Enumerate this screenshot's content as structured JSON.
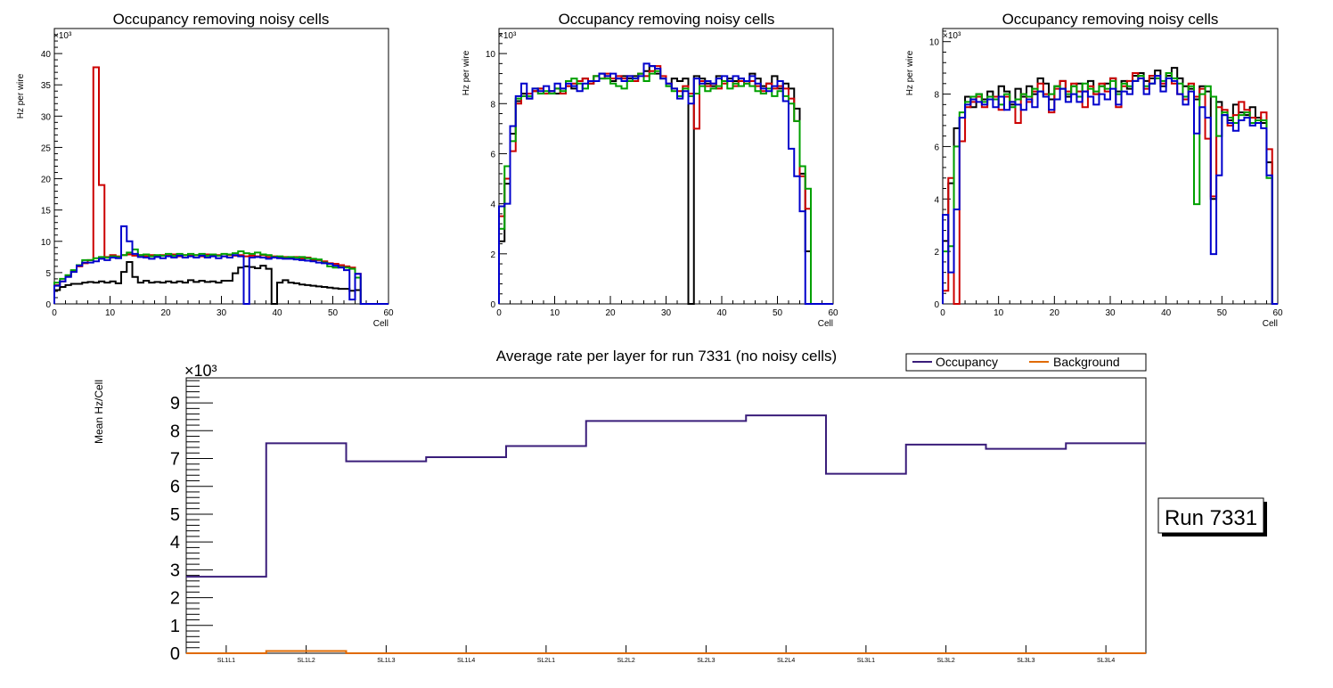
{
  "chart_data": [
    {
      "type": "step",
      "title": "Occupancy removing noisy cells",
      "xlabel": "Cell",
      "ylabel": "Hz per wire",
      "multiplier": "×10³",
      "xlim": [
        0,
        60
      ],
      "ylim": [
        0,
        44
      ],
      "xticks": [
        0,
        10,
        20,
        30,
        40,
        50,
        60
      ],
      "yticks": [
        0,
        5,
        10,
        15,
        20,
        25,
        30,
        35,
        40
      ],
      "series": [
        {
          "name": "black",
          "color": "#000000",
          "values": [
            2.2,
            2.7,
            3.0,
            3.2,
            3.2,
            3.4,
            3.5,
            3.4,
            3.6,
            3.4,
            3.6,
            3.3,
            5.1,
            6.7,
            4.3,
            3.4,
            3.7,
            3.4,
            3.5,
            3.4,
            3.6,
            3.4,
            3.6,
            3.4,
            3.8,
            3.5,
            3.7,
            3.5,
            3.6,
            3.4,
            3.7,
            3.7,
            4.9,
            5.8,
            6.0,
            5.9,
            5.7,
            6.1,
            5.6,
            0,
            3.4,
            3.8,
            3.4,
            3.3,
            3.1,
            3.0,
            2.9,
            2.8,
            2.7,
            2.6,
            2.5,
            2.4,
            2.4,
            2.1,
            2.2,
            0,
            0,
            0,
            0,
            0
          ]
        },
        {
          "name": "red",
          "color": "#cc0000",
          "values": [
            3.0,
            3.6,
            4.4,
            5.3,
            6.0,
            6.5,
            7.0,
            37.8,
            19.0,
            7.5,
            7.8,
            7.6,
            7.8,
            7.9,
            7.7,
            7.8,
            7.6,
            7.8,
            7.6,
            7.8,
            7.7,
            7.9,
            7.6,
            7.8,
            7.7,
            7.8,
            7.6,
            7.9,
            7.7,
            7.8,
            7.6,
            7.8,
            7.7,
            7.8,
            7.6,
            7.7,
            7.6,
            7.8,
            7.5,
            7.6,
            7.4,
            7.5,
            7.3,
            7.5,
            7.2,
            7.4,
            7.0,
            7.0,
            6.8,
            6.5,
            6.4,
            6.2,
            6.0,
            5.8,
            4.8,
            0,
            0,
            0,
            0,
            0
          ]
        },
        {
          "name": "green",
          "color": "#00a000",
          "values": [
            3.4,
            4.0,
            4.6,
            5.4,
            6.2,
            7.0,
            7.0,
            7.3,
            7.5,
            7.4,
            7.6,
            7.5,
            7.8,
            8.2,
            8.7,
            7.8,
            7.9,
            7.6,
            7.8,
            7.7,
            8.0,
            7.7,
            8.0,
            7.8,
            8.0,
            7.8,
            8.0,
            7.7,
            7.9,
            7.7,
            8.0,
            7.9,
            8.1,
            8.4,
            8.1,
            8.0,
            8.2,
            7.9,
            7.8,
            7.5,
            7.6,
            7.4,
            7.5,
            7.4,
            7.5,
            7.3,
            7.2,
            7.1,
            6.6,
            6.0,
            5.8,
            5.9,
            5.8,
            5.6,
            4.2,
            0,
            0,
            0,
            0,
            0
          ]
        },
        {
          "name": "blue",
          "color": "#0000cc",
          "values": [
            2.9,
            3.6,
            4.3,
            5.1,
            6.1,
            6.6,
            6.6,
            6.8,
            7.2,
            7.0,
            7.4,
            7.3,
            12.4,
            10.0,
            8.0,
            7.5,
            7.4,
            7.2,
            7.5,
            7.3,
            7.6,
            7.4,
            7.7,
            7.4,
            7.6,
            7.4,
            7.7,
            7.4,
            7.6,
            7.3,
            7.6,
            7.4,
            7.8,
            7.6,
            0,
            7.4,
            7.5,
            7.4,
            7.2,
            7.4,
            7.3,
            7.2,
            7.2,
            7.1,
            7.0,
            6.9,
            6.8,
            6.6,
            6.5,
            6.4,
            6.1,
            5.8,
            5.4,
            0.7,
            4.8,
            0,
            0,
            0,
            0,
            0
          ]
        }
      ]
    },
    {
      "type": "step",
      "title": "Occupancy removing noisy cells",
      "xlabel": "Cell",
      "ylabel": "Hz per wire",
      "multiplier": "×10³",
      "xlim": [
        0,
        60
      ],
      "ylim": [
        0,
        11
      ],
      "xticks": [
        0,
        10,
        20,
        30,
        40,
        50,
        60
      ],
      "yticks": [
        0,
        2,
        4,
        6,
        8,
        10
      ],
      "series": [
        {
          "name": "black",
          "color": "#000000",
          "values": [
            2.5,
            4.8,
            6.8,
            8.1,
            8.4,
            8.2,
            8.5,
            8.6,
            8.4,
            8.5,
            8.4,
            8.6,
            8.7,
            8.6,
            8.9,
            9.0,
            8.8,
            9.1,
            9.2,
            9.1,
            8.9,
            9.0,
            9.1,
            9.0,
            9.1,
            9.2,
            9.3,
            9.5,
            9.2,
            9.0,
            8.7,
            9.0,
            8.9,
            9.0,
            0,
            9.1,
            9.0,
            8.8,
            8.7,
            9.1,
            8.9,
            9.0,
            8.9,
            9.0,
            8.9,
            9.2,
            9.0,
            8.7,
            8.8,
            9.1,
            8.6,
            8.8,
            8.6,
            7.8,
            5.2,
            2.1,
            0,
            0,
            0,
            0
          ]
        },
        {
          "name": "red",
          "color": "#cc0000",
          "values": [
            3.5,
            5.0,
            6.1,
            8.0,
            8.3,
            8.4,
            8.5,
            8.6,
            8.4,
            8.5,
            8.6,
            8.4,
            8.7,
            8.8,
            8.9,
            9.0,
            8.8,
            9.1,
            9.0,
            9.2,
            9.0,
            9.1,
            9.0,
            9.1,
            8.9,
            9.2,
            9.1,
            9.3,
            9.5,
            9.1,
            8.8,
            8.6,
            8.5,
            8.7,
            8.4,
            7.0,
            8.9,
            8.7,
            8.8,
            8.6,
            8.8,
            8.9,
            8.7,
            8.9,
            8.8,
            8.9,
            8.7,
            8.5,
            8.8,
            8.6,
            8.7,
            8.6,
            8.2,
            7.3,
            5.1,
            3.8,
            0,
            0,
            0,
            0
          ]
        },
        {
          "name": "green",
          "color": "#00a000",
          "values": [
            3.0,
            5.5,
            6.5,
            8.2,
            8.3,
            8.3,
            8.6,
            8.4,
            8.5,
            8.4,
            8.6,
            8.5,
            8.9,
            9.0,
            8.8,
            8.6,
            8.9,
            9.1,
            9.0,
            9.0,
            8.8,
            8.7,
            8.6,
            8.9,
            9.0,
            9.2,
            8.9,
            9.2,
            9.3,
            9.0,
            8.7,
            8.5,
            8.3,
            8.6,
            8.3,
            8.4,
            8.7,
            8.5,
            8.6,
            8.7,
            8.9,
            8.6,
            8.8,
            8.7,
            8.8,
            8.7,
            8.5,
            8.4,
            8.6,
            8.3,
            8.5,
            8.3,
            8.0,
            7.3,
            5.5,
            4.6,
            0,
            0,
            0,
            0
          ]
        },
        {
          "name": "blue",
          "color": "#0000cc",
          "values": [
            3.9,
            4.0,
            7.1,
            8.3,
            8.8,
            8.2,
            8.6,
            8.5,
            8.7,
            8.5,
            8.8,
            8.6,
            8.8,
            8.7,
            8.5,
            8.8,
            8.9,
            8.9,
            9.2,
            9.1,
            9.2,
            9.0,
            8.9,
            9.1,
            9.0,
            9.1,
            9.6,
            9.5,
            9.4,
            9.0,
            8.8,
            8.6,
            8.2,
            8.5,
            8.0,
            9.0,
            8.8,
            8.9,
            8.8,
            9.0,
            9.1,
            8.9,
            9.1,
            9.0,
            8.9,
            9.1,
            8.8,
            8.6,
            8.5,
            8.7,
            8.9,
            8.1,
            6.2,
            5.1,
            3.7,
            0,
            0,
            0,
            0,
            0
          ]
        }
      ]
    },
    {
      "type": "step",
      "title": "Occupancy removing noisy cells",
      "xlabel": "Cell",
      "ylabel": "Hz per wire",
      "multiplier": "×10³",
      "xlim": [
        0,
        60
      ],
      "ylim": [
        0,
        10.5
      ],
      "xticks": [
        0,
        10,
        20,
        30,
        40,
        50,
        60
      ],
      "yticks": [
        0,
        2,
        4,
        6,
        8,
        10
      ],
      "series": [
        {
          "name": "black",
          "color": "#000000",
          "values": [
            2.4,
            4.6,
            6.7,
            7.1,
            7.9,
            7.5,
            8.0,
            7.8,
            8.1,
            7.9,
            8.3,
            8.1,
            7.6,
            8.2,
            7.9,
            8.3,
            8.0,
            8.6,
            8.4,
            7.8,
            8.3,
            8.5,
            7.9,
            8.3,
            8.4,
            8.1,
            8.5,
            8.0,
            8.3,
            8.4,
            8.6,
            8.1,
            8.5,
            8.2,
            8.7,
            8.8,
            8.5,
            8.6,
            8.9,
            8.3,
            8.7,
            9.0,
            8.6,
            8.3,
            8.2,
            7.8,
            8.3,
            8.1,
            4.0,
            7.7,
            7.2,
            7.0,
            7.6,
            7.3,
            7.2,
            7.5,
            7.1,
            6.9,
            5.4,
            0
          ]
        },
        {
          "name": "red",
          "color": "#cc0000",
          "values": [
            0.5,
            4.8,
            0,
            6.2,
            7.5,
            7.7,
            7.9,
            7.5,
            7.8,
            7.9,
            7.4,
            7.9,
            7.7,
            6.9,
            8.0,
            7.7,
            8.1,
            8.4,
            8.0,
            7.3,
            8.2,
            8.5,
            8.1,
            8.4,
            8.1,
            7.5,
            8.3,
            8.0,
            8.4,
            8.1,
            8.6,
            7.5,
            8.3,
            8.5,
            8.8,
            8.6,
            8.2,
            8.7,
            8.6,
            8.4,
            8.8,
            8.4,
            8.0,
            7.8,
            8.4,
            7.9,
            8.2,
            6.3,
            4.1,
            7.5,
            7.4,
            6.8,
            7.2,
            7.7,
            7.4,
            7.1,
            7.0,
            7.3,
            5.9,
            0
          ]
        },
        {
          "name": "green",
          "color": "#00a000",
          "values": [
            2.0,
            2.2,
            6.0,
            7.3,
            7.7,
            7.9,
            8.0,
            7.7,
            7.9,
            7.8,
            7.6,
            8.0,
            7.5,
            7.8,
            8.0,
            7.9,
            8.2,
            8.1,
            7.9,
            8.0,
            8.3,
            8.2,
            8.0,
            8.3,
            7.9,
            8.4,
            8.2,
            8.1,
            8.3,
            8.2,
            8.5,
            8.0,
            8.4,
            8.3,
            8.5,
            8.7,
            8.3,
            8.4,
            8.6,
            8.5,
            8.8,
            8.6,
            8.4,
            7.9,
            8.3,
            3.8,
            8.0,
            8.3,
            7.9,
            6.4,
            7.3,
            7.1,
            6.9,
            7.2,
            7.3,
            6.9,
            7.0,
            7.0,
            4.8,
            0
          ]
        },
        {
          "name": "blue",
          "color": "#0000cc",
          "values": [
            3.4,
            1.2,
            3.6,
            7.1,
            7.6,
            7.8,
            7.7,
            7.6,
            7.8,
            7.5,
            7.9,
            7.4,
            7.7,
            7.6,
            7.4,
            7.8,
            7.5,
            8.1,
            7.9,
            7.4,
            7.8,
            8.2,
            7.7,
            8.0,
            7.7,
            8.1,
            7.9,
            7.6,
            8.0,
            7.8,
            8.2,
            7.6,
            8.1,
            8.0,
            8.5,
            8.6,
            8.0,
            8.4,
            8.7,
            8.1,
            8.6,
            8.5,
            8.0,
            7.6,
            8.1,
            6.5,
            7.5,
            7.1,
            1.9,
            4.9,
            7.2,
            6.9,
            6.6,
            7.0,
            7.1,
            6.8,
            6.9,
            6.7,
            4.9,
            0
          ]
        }
      ]
    },
    {
      "type": "step",
      "title": "Average rate per layer for run 7331 (no noisy cells)",
      "xlabel": "",
      "ylabel": "Mean Hz/Cell",
      "multiplier": "×10³",
      "ylim": [
        0,
        9.9
      ],
      "yticks": [
        0,
        1,
        2,
        3,
        4,
        5,
        6,
        7,
        8,
        9
      ],
      "categories": [
        "SL1L1",
        "SL1L2",
        "SL1L3",
        "SL1L4",
        "SL2L1",
        "SL2L2",
        "SL2L3",
        "SL2L4",
        "SL3L1",
        "SL3L2",
        "SL3L3",
        "SL3L4"
      ],
      "series": [
        {
          "name": "Occupancy",
          "color": "#3a1d7a",
          "values": [
            2.75,
            7.55,
            6.9,
            7.05,
            7.45,
            8.35,
            8.35,
            8.55,
            6.45,
            7.5,
            7.35,
            7.55
          ]
        },
        {
          "name": "Background",
          "color": "#e06a00",
          "values": [
            0.0,
            0.08,
            0.0,
            0.0,
            0.0,
            0.0,
            0.0,
            0.0,
            0.0,
            0.0,
            0.0,
            0.0
          ]
        }
      ],
      "legend": {
        "position": "top-right",
        "entries": [
          "Occupancy",
          "Background"
        ]
      }
    }
  ],
  "run_label": "Run 7331"
}
